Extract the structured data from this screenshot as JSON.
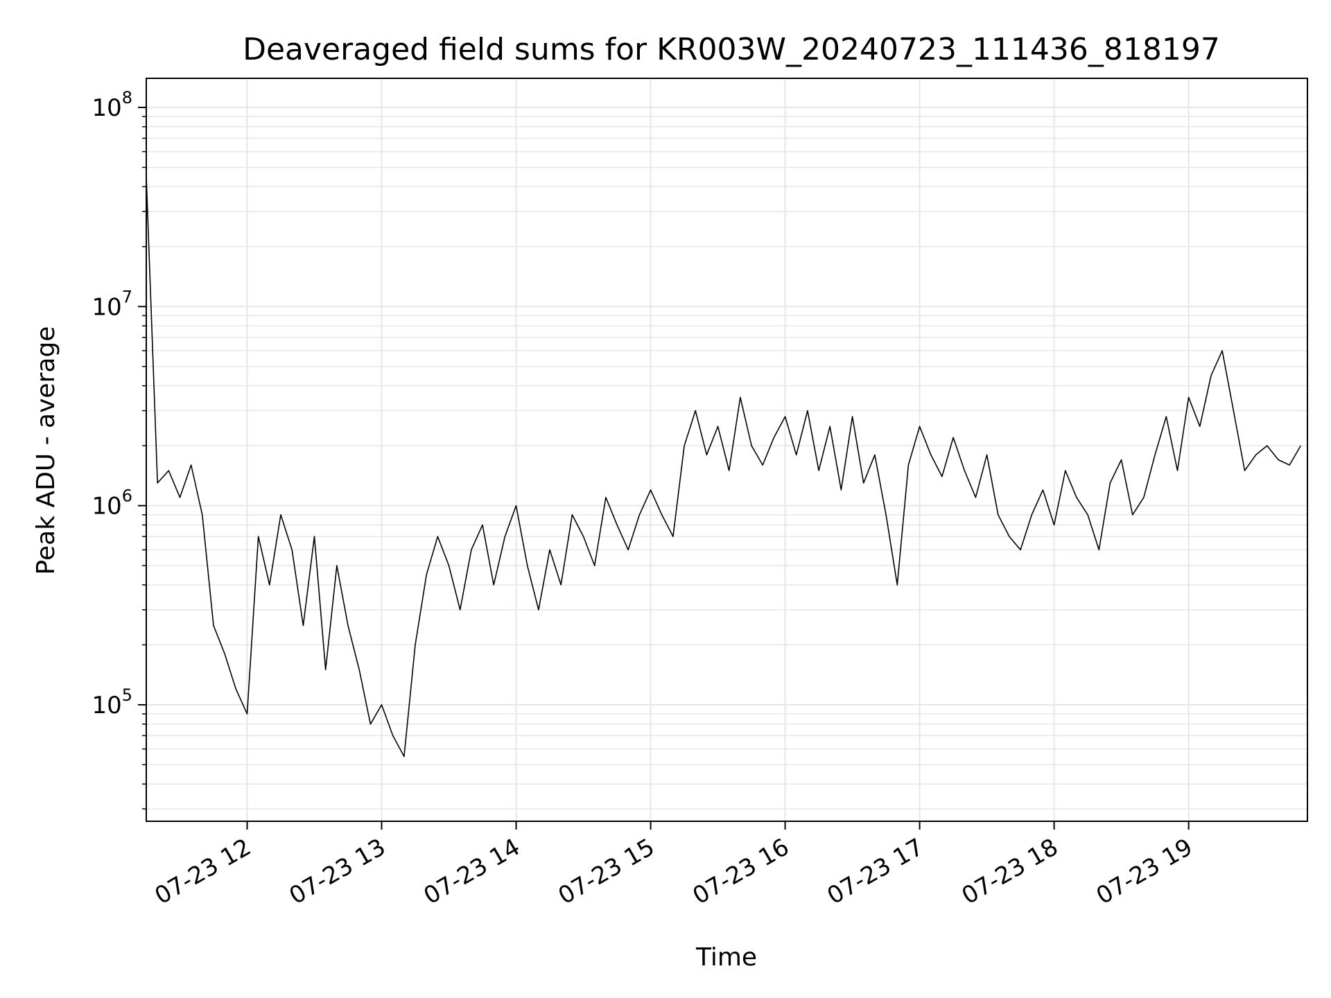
{
  "chart_data": {
    "type": "line",
    "title": "Deaveraged field sums for KR003W_20240723_111436_818197",
    "xlabel": "Time",
    "ylabel": "Peak ADU - average",
    "y_scale": "log",
    "ylim": [
      26000,
      140000000
    ],
    "xlim": [
      "2024-07-23T11:15",
      "2024-07-23T19:53"
    ],
    "x_ticks": [
      "07-23 12",
      "07-23 13",
      "07-23 14",
      "07-23 15",
      "07-23 16",
      "07-23 17",
      "07-23 18",
      "07-23 19"
    ],
    "y_ticks": [
      "10^5",
      "10^6",
      "10^7",
      "10^8"
    ],
    "grid": true,
    "line_color": "#000000",
    "series": [
      {
        "x": [
          "2024-07-23T11:15",
          "2024-07-23T11:20",
          "2024-07-23T11:25",
          "2024-07-23T11:30",
          "2024-07-23T11:35",
          "2024-07-23T11:40",
          "2024-07-23T11:45",
          "2024-07-23T11:50",
          "2024-07-23T11:55",
          "2024-07-23T12:00",
          "2024-07-23T12:05",
          "2024-07-23T12:10",
          "2024-07-23T12:15",
          "2024-07-23T12:20",
          "2024-07-23T12:25",
          "2024-07-23T12:30",
          "2024-07-23T12:35",
          "2024-07-23T12:40",
          "2024-07-23T12:45",
          "2024-07-23T12:50",
          "2024-07-23T12:55",
          "2024-07-23T13:00",
          "2024-07-23T13:05",
          "2024-07-23T13:10",
          "2024-07-23T13:15",
          "2024-07-23T13:20",
          "2024-07-23T13:25",
          "2024-07-23T13:30",
          "2024-07-23T13:35",
          "2024-07-23T13:40",
          "2024-07-23T13:45",
          "2024-07-23T13:50",
          "2024-07-23T13:55",
          "2024-07-23T14:00",
          "2024-07-23T14:05",
          "2024-07-23T14:10",
          "2024-07-23T14:15",
          "2024-07-23T14:20",
          "2024-07-23T14:25",
          "2024-07-23T14:30",
          "2024-07-23T14:35",
          "2024-07-23T14:40",
          "2024-07-23T14:45",
          "2024-07-23T14:50",
          "2024-07-23T14:55",
          "2024-07-23T15:00",
          "2024-07-23T15:05",
          "2024-07-23T15:10",
          "2024-07-23T15:15",
          "2024-07-23T15:20",
          "2024-07-23T15:25",
          "2024-07-23T15:30",
          "2024-07-23T15:35",
          "2024-07-23T15:40",
          "2024-07-23T15:45",
          "2024-07-23T15:50",
          "2024-07-23T15:55",
          "2024-07-23T16:00",
          "2024-07-23T16:05",
          "2024-07-23T16:10",
          "2024-07-23T16:15",
          "2024-07-23T16:20",
          "2024-07-23T16:25",
          "2024-07-23T16:30",
          "2024-07-23T16:35",
          "2024-07-23T16:40",
          "2024-07-23T16:45",
          "2024-07-23T16:50",
          "2024-07-23T16:55",
          "2024-07-23T17:00",
          "2024-07-23T17:05",
          "2024-07-23T17:10",
          "2024-07-23T17:15",
          "2024-07-23T17:20",
          "2024-07-23T17:25",
          "2024-07-23T17:30",
          "2024-07-23T17:35",
          "2024-07-23T17:40",
          "2024-07-23T17:45",
          "2024-07-23T17:50",
          "2024-07-23T17:55",
          "2024-07-23T18:00",
          "2024-07-23T18:05",
          "2024-07-23T18:10",
          "2024-07-23T18:15",
          "2024-07-23T18:20",
          "2024-07-23T18:25",
          "2024-07-23T18:30",
          "2024-07-23T18:35",
          "2024-07-23T18:40",
          "2024-07-23T18:45",
          "2024-07-23T18:50",
          "2024-07-23T18:55",
          "2024-07-23T19:00",
          "2024-07-23T19:05",
          "2024-07-23T19:10",
          "2024-07-23T19:15",
          "2024-07-23T19:20",
          "2024-07-23T19:25",
          "2024-07-23T19:30",
          "2024-07-23T19:35",
          "2024-07-23T19:40",
          "2024-07-23T19:45",
          "2024-07-23T19:50"
        ],
        "values": [
          45000000,
          1300000,
          1500000,
          1100000,
          1600000,
          900000,
          250000,
          180000,
          120000,
          90000,
          700000,
          400000,
          900000,
          600000,
          250000,
          700000,
          150000,
          500000,
          250000,
          150000,
          80000,
          100000,
          70000,
          55000,
          200000,
          450000,
          700000,
          500000,
          300000,
          600000,
          800000,
          400000,
          700000,
          1000000,
          500000,
          300000,
          600000,
          400000,
          900000,
          700000,
          500000,
          1100000,
          800000,
          600000,
          900000,
          1200000,
          900000,
          700000,
          2000000,
          3000000,
          1800000,
          2500000,
          1500000,
          3500000,
          2000000,
          1600000,
          2200000,
          2800000,
          1800000,
          3000000,
          1500000,
          2500000,
          1200000,
          2800000,
          1300000,
          1800000,
          900000,
          400000,
          1600000,
          2500000,
          1800000,
          1400000,
          2200000,
          1500000,
          1100000,
          1800000,
          900000,
          700000,
          600000,
          900000,
          1200000,
          800000,
          1500000,
          1100000,
          900000,
          600000,
          1300000,
          1700000,
          900000,
          1100000,
          1800000,
          2800000,
          1500000,
          3500000,
          2500000,
          4500000,
          6000000,
          3000000,
          1500000,
          1800000,
          2000000,
          1700000,
          1600000,
          2000000
        ]
      }
    ]
  }
}
